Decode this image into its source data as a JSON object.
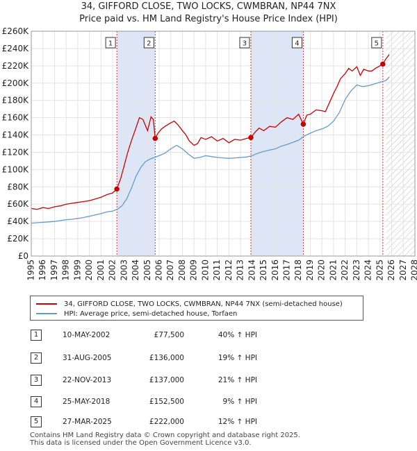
{
  "chart_data": {
    "type": "line",
    "title": "34, GIFFORD CLOSE, TWO LOCKS, CWMBRAN, NP44 7NX",
    "subtitle": "Price paid vs. HM Land Registry's House Price Index (HPI)",
    "xlim": [
      1995,
      2028
    ],
    "ylim": [
      0,
      260000
    ],
    "x_ticks": [
      1995,
      1996,
      1997,
      1998,
      1999,
      2000,
      2001,
      2002,
      2003,
      2004,
      2005,
      2006,
      2007,
      2008,
      2009,
      2010,
      2011,
      2012,
      2013,
      2014,
      2015,
      2016,
      2017,
      2018,
      2019,
      2020,
      2021,
      2022,
      2023,
      2024,
      2025,
      2026,
      2027,
      2028
    ],
    "y_ticks": [
      0,
      20000,
      40000,
      60000,
      80000,
      100000,
      120000,
      140000,
      160000,
      180000,
      200000,
      220000,
      240000,
      260000
    ],
    "y_tick_labels": [
      "£0",
      "£20K",
      "£40K",
      "£60K",
      "£80K",
      "£100K",
      "£120K",
      "£140K",
      "£160K",
      "£180K",
      "£200K",
      "£220K",
      "£240K",
      "£260K"
    ],
    "grid": true,
    "colors": {
      "property": "#cc0000",
      "hpi": "#6699cc",
      "band": "#dde6f7",
      "hatch": "#bbbbbb",
      "vline": "#dd3333"
    },
    "shaded_ranges": [
      [
        2002.36,
        2005.66
      ],
      [
        2013.89,
        2018.4
      ]
    ],
    "forecast_from": 2025.5,
    "series": [
      {
        "name": "34, GIFFORD CLOSE, TWO LOCKS, CWMBRAN, NP44 7NX (semi-detached house)",
        "x": [
          1995.0,
          1995.5,
          1996.0,
          1996.5,
          1997.0,
          1997.5,
          1998.0,
          1998.5,
          1999.0,
          1999.5,
          2000.0,
          2000.5,
          2001.0,
          2001.5,
          2002.0,
          2002.36,
          2002.7,
          2003.0,
          2003.3,
          2003.6,
          2004.0,
          2004.3,
          2004.6,
          2005.0,
          2005.3,
          2005.5,
          2005.66,
          2005.9,
          2006.2,
          2006.5,
          2007.0,
          2007.3,
          2007.6,
          2008.0,
          2008.3,
          2008.6,
          2009.0,
          2009.3,
          2009.6,
          2010.0,
          2010.5,
          2011.0,
          2011.5,
          2012.0,
          2012.5,
          2013.0,
          2013.5,
          2013.89,
          2014.3,
          2014.6,
          2015.0,
          2015.5,
          2016.0,
          2016.5,
          2017.0,
          2017.5,
          2018.0,
          2018.4,
          2018.7,
          2019.0,
          2019.5,
          2020.0,
          2020.3,
          2020.6,
          2021.0,
          2021.3,
          2021.6,
          2022.0,
          2022.3,
          2022.6,
          2023.0,
          2023.3,
          2023.6,
          2024.0,
          2024.3,
          2024.6,
          2025.0,
          2025.24,
          2025.5,
          2025.8
        ],
        "y": [
          55000,
          54000,
          56000,
          55000,
          57000,
          58000,
          60000,
          61000,
          62000,
          63000,
          64000,
          66000,
          68000,
          71000,
          73000,
          77500,
          90000,
          105000,
          120000,
          133000,
          148000,
          160000,
          158000,
          145000,
          161000,
          158000,
          136000,
          142000,
          147000,
          150000,
          154000,
          156000,
          152000,
          145000,
          140000,
          133000,
          128000,
          130000,
          137000,
          135000,
          138000,
          133000,
          136000,
          131000,
          135000,
          134000,
          136000,
          137000,
          144000,
          148000,
          145000,
          150000,
          149000,
          155000,
          160000,
          158000,
          164000,
          152500,
          163000,
          164000,
          169000,
          168000,
          167000,
          176000,
          188000,
          196000,
          205000,
          211000,
          217000,
          214000,
          219000,
          209000,
          216000,
          214000,
          214000,
          217000,
          220000,
          222000,
          228000,
          233000
        ]
      },
      {
        "name": "HPI: Average price, semi-detached house, Torfaen",
        "x": [
          1995.0,
          1995.5,
          1996.0,
          1996.5,
          1997.0,
          1997.5,
          1998.0,
          1998.5,
          1999.0,
          1999.5,
          2000.0,
          2000.5,
          2001.0,
          2001.5,
          2002.0,
          2002.4,
          2002.8,
          2003.2,
          2003.6,
          2004.0,
          2004.4,
          2004.8,
          2005.2,
          2005.6,
          2006.0,
          2006.5,
          2007.0,
          2007.5,
          2008.0,
          2008.5,
          2009.0,
          2009.5,
          2010.0,
          2010.5,
          2011.0,
          2011.5,
          2012.0,
          2012.5,
          2013.0,
          2013.5,
          2014.0,
          2014.5,
          2015.0,
          2015.5,
          2016.0,
          2016.5,
          2017.0,
          2017.5,
          2018.0,
          2018.5,
          2019.0,
          2019.5,
          2020.0,
          2020.5,
          2021.0,
          2021.5,
          2022.0,
          2022.5,
          2023.0,
          2023.5,
          2024.0,
          2024.5,
          2025.0,
          2025.5,
          2025.8
        ],
        "y": [
          38000,
          38500,
          39000,
          39500,
          40000,
          41000,
          42000,
          42500,
          43500,
          44500,
          46000,
          47500,
          49000,
          51000,
          52000,
          54000,
          58000,
          66000,
          78000,
          92000,
          102000,
          109000,
          112000,
          114000,
          116000,
          119000,
          124000,
          128000,
          124000,
          118000,
          113000,
          114000,
          116000,
          115000,
          114000,
          113500,
          113000,
          113500,
          114000,
          114500,
          116000,
          119000,
          121000,
          122500,
          124000,
          127000,
          129000,
          131500,
          134000,
          139000,
          142000,
          145000,
          147000,
          150000,
          156000,
          166000,
          181000,
          191000,
          198000,
          196000,
          197000,
          199000,
          201000,
          203000,
          207000
        ]
      }
    ],
    "sales": [
      {
        "label": "1",
        "x": 2002.36,
        "y": 77500
      },
      {
        "label": "2",
        "x": 2005.66,
        "y": 136000
      },
      {
        "label": "3",
        "x": 2013.89,
        "y": 137000
      },
      {
        "label": "4",
        "x": 2018.4,
        "y": 152500
      },
      {
        "label": "5",
        "x": 2025.24,
        "y": 222000
      }
    ]
  },
  "legend": {
    "property": "34, GIFFORD CLOSE, TWO LOCKS, CWMBRAN, NP44 7NX (semi-detached house)",
    "hpi": "HPI: Average price, semi-detached house, Torfaen"
  },
  "transactions": [
    {
      "num": "1",
      "date": "10-MAY-2002",
      "price": "£77,500",
      "hpi": "40% ↑ HPI"
    },
    {
      "num": "2",
      "date": "31-AUG-2005",
      "price": "£136,000",
      "hpi": "19% ↑ HPI"
    },
    {
      "num": "3",
      "date": "22-NOV-2013",
      "price": "£137,000",
      "hpi": "21% ↑ HPI"
    },
    {
      "num": "4",
      "date": "25-MAY-2018",
      "price": "£152,500",
      "hpi": "9% ↑ HPI"
    },
    {
      "num": "5",
      "date": "27-MAR-2025",
      "price": "£222,000",
      "hpi": "12% ↑ HPI"
    }
  ],
  "footer": {
    "line1": "Contains HM Land Registry data © Crown copyright and database right 2025.",
    "line2": "This data is licensed under the Open Government Licence v3.0."
  }
}
